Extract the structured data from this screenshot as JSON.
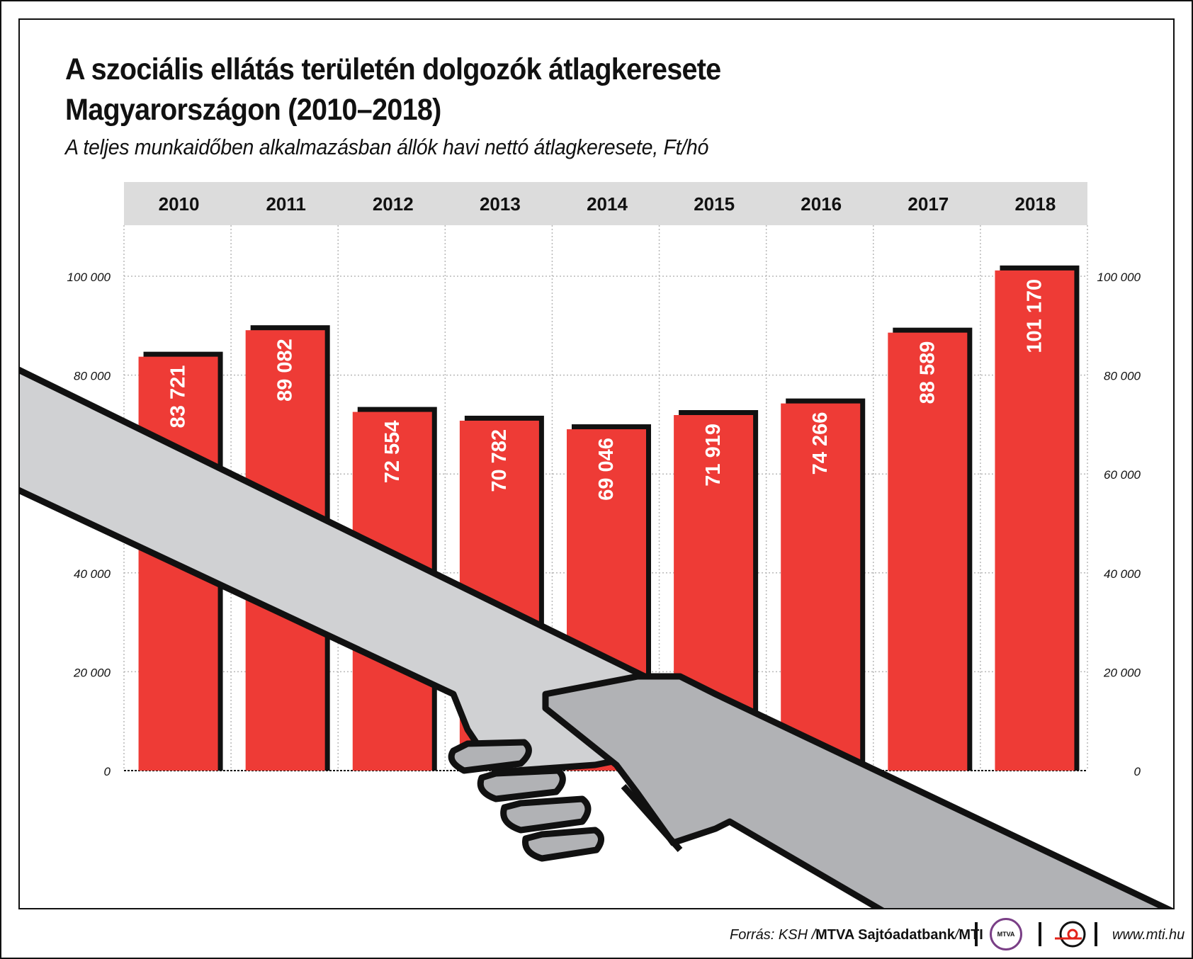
{
  "title_lines": [
    "A szociális ellátás területén dolgozók átlagkeresete",
    "Magyarországon (2010–2018)"
  ],
  "subtitle": "A teljes munkaidőben alkalmazásban állók havi nettó átlagkeresete, Ft/hó",
  "chart_data": {
    "type": "bar",
    "categories": [
      "2010",
      "2011",
      "2012",
      "2013",
      "2014",
      "2015",
      "2016",
      "2017",
      "2018"
    ],
    "values": [
      83721,
      89082,
      72554,
      70782,
      69046,
      71919,
      74266,
      88589,
      101170
    ],
    "value_labels": [
      "83 721",
      "89 082",
      "72 554",
      "70 782",
      "69 046",
      "71 919",
      "74 266",
      "88 589",
      "101 170"
    ],
    "ylim": [
      0,
      100000
    ],
    "yticks": [
      0,
      20000,
      40000,
      60000,
      80000,
      100000
    ],
    "ytick_labels": [
      "0",
      "20 000",
      "40 000",
      "60 000",
      "80 000",
      "100 000"
    ],
    "axis_sides": [
      "left",
      "right"
    ],
    "grid": true,
    "bar_color": "#ee3b36",
    "shadow_color": "#111111"
  },
  "illustration": {
    "name": "handshake-illustration",
    "arm_light_color": "#d0d1d3",
    "arm_dark_color": "#b1b2b5"
  },
  "footer": {
    "source_prefix": "Forrás: KSH / ",
    "source_bold": "MTVA Sajtóadatbank",
    "source_sep": " / ",
    "source_agency": "MTI",
    "mtva_logo_text": "MTVA",
    "website": "www.mti.hu"
  }
}
